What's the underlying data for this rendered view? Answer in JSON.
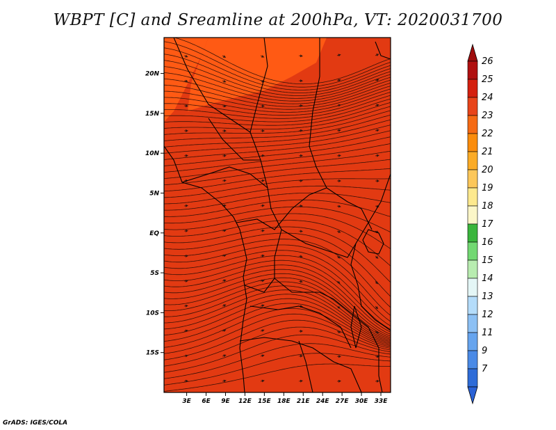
{
  "title": "WBPT [C] and Sreamline at 200hPa, VT: 2020031700",
  "credit": "GrADS: IGES/COLA",
  "map": {
    "lon_range": [
      -0.5,
      34.5
    ],
    "lat_range": [
      -20,
      24.5
    ],
    "lon_ticks": [
      {
        "value": 3,
        "label": "3E"
      },
      {
        "value": 6,
        "label": "6E"
      },
      {
        "value": 9,
        "label": "9E"
      },
      {
        "value": 12,
        "label": "12E"
      },
      {
        "value": 15,
        "label": "15E"
      },
      {
        "value": 18,
        "label": "18E"
      },
      {
        "value": 21,
        "label": "21E"
      },
      {
        "value": 24,
        "label": "24E"
      },
      {
        "value": 27,
        "label": "27E"
      },
      {
        "value": 30,
        "label": "30E"
      },
      {
        "value": 33,
        "label": "33E"
      }
    ],
    "lat_ticks": [
      {
        "value": 20,
        "label": "20N"
      },
      {
        "value": 15,
        "label": "15N"
      },
      {
        "value": 10,
        "label": "10N"
      },
      {
        "value": 5,
        "label": "5N"
      },
      {
        "value": 0,
        "label": "EQ"
      },
      {
        "value": -5,
        "label": "5S"
      },
      {
        "value": -10,
        "label": "10S"
      },
      {
        "value": -15,
        "label": "15S"
      }
    ],
    "field_color": "#e23a12",
    "patch_color": "#ff5a14"
  },
  "colorbar": {
    "levels": [
      {
        "label": "26",
        "color": "#b01010"
      },
      {
        "label": "25",
        "color": "#d4200f"
      },
      {
        "label": "24",
        "color": "#e8441a"
      },
      {
        "label": "23",
        "color": "#f56a14"
      },
      {
        "label": "22",
        "color": "#fa8c0c"
      },
      {
        "label": "21",
        "color": "#fbab26"
      },
      {
        "label": "20",
        "color": "#fcc75a"
      },
      {
        "label": "19",
        "color": "#fde98e"
      },
      {
        "label": "18",
        "color": "#fbf6c8"
      },
      {
        "label": "17",
        "color": "#3ab53c"
      },
      {
        "label": "16",
        "color": "#72d872"
      },
      {
        "label": "15",
        "color": "#b8ecb0"
      },
      {
        "label": "14",
        "color": "#e4f6f6"
      },
      {
        "label": "13",
        "color": "#b4dcfa"
      },
      {
        "label": "12",
        "color": "#8cc0f4"
      },
      {
        "label": "11",
        "color": "#66a4ee"
      },
      {
        "label": "9",
        "color": "#4a8ae6"
      },
      {
        "label": "7",
        "color": "#2e6cd8"
      }
    ],
    "top_arrow_color": "#9e0c0c",
    "bottom_arrow_color": "#2a62d6"
  }
}
